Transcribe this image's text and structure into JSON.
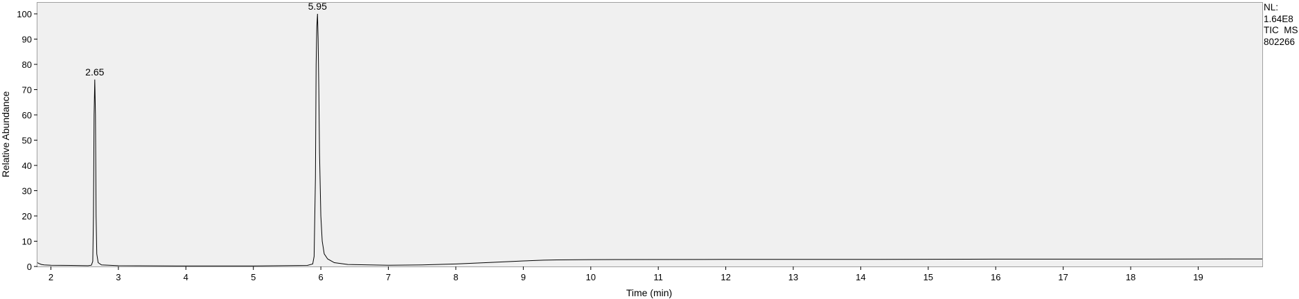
{
  "chart_data": {
    "type": "line",
    "xlabel": "Time (min)",
    "ylabel": "Relative Abundance",
    "xlim": [
      1.8,
      19.95
    ],
    "ylim": [
      0,
      100
    ],
    "x_ticks": [
      2,
      3,
      4,
      5,
      6,
      7,
      8,
      9,
      10,
      11,
      12,
      13,
      14,
      15,
      16,
      17,
      18,
      19
    ],
    "y_ticks": [
      0,
      10,
      20,
      30,
      40,
      50,
      60,
      70,
      80,
      90,
      100
    ],
    "peak_annotations": [
      {
        "label": "2.65",
        "x": 2.65,
        "y": 74
      },
      {
        "label": "5.95",
        "x": 5.95,
        "y": 100
      }
    ],
    "series": [
      {
        "x": [
          1.8,
          1.82,
          1.86,
          1.9,
          2.0,
          2.3,
          2.55,
          2.6,
          2.62,
          2.63,
          2.64,
          2.65,
          2.66,
          2.67,
          2.68,
          2.7,
          2.75,
          3.0,
          4.0,
          5.0,
          5.8,
          5.88,
          5.9,
          5.92,
          5.93,
          5.94,
          5.95,
          5.96,
          5.97,
          5.98,
          6.0,
          6.02,
          6.05,
          6.1,
          6.2,
          6.4,
          7.0,
          7.5,
          8.0,
          8.5,
          9.0,
          9.3,
          9.5,
          10.0,
          12.0,
          14.0,
          16.0,
          18.0,
          19.95
        ],
        "y": [
          1.5,
          1.2,
          0.8,
          0.6,
          0.5,
          0.4,
          0.3,
          0.5,
          2.0,
          20,
          60,
          74,
          60,
          20,
          5,
          1.5,
          0.6,
          0.3,
          0.2,
          0.2,
          0.4,
          1.0,
          4.0,
          35,
          80,
          95,
          100,
          90,
          70,
          45,
          20,
          10,
          5,
          3,
          1.5,
          0.8,
          0.5,
          0.6,
          1.0,
          1.6,
          2.2,
          2.5,
          2.6,
          2.7,
          2.8,
          2.8,
          2.9,
          2.9,
          3.0
        ]
      }
    ]
  },
  "info_panel": {
    "line1": "NL:",
    "line2": "1.64E8",
    "line3": "TIC  MS",
    "line4": "802266"
  }
}
